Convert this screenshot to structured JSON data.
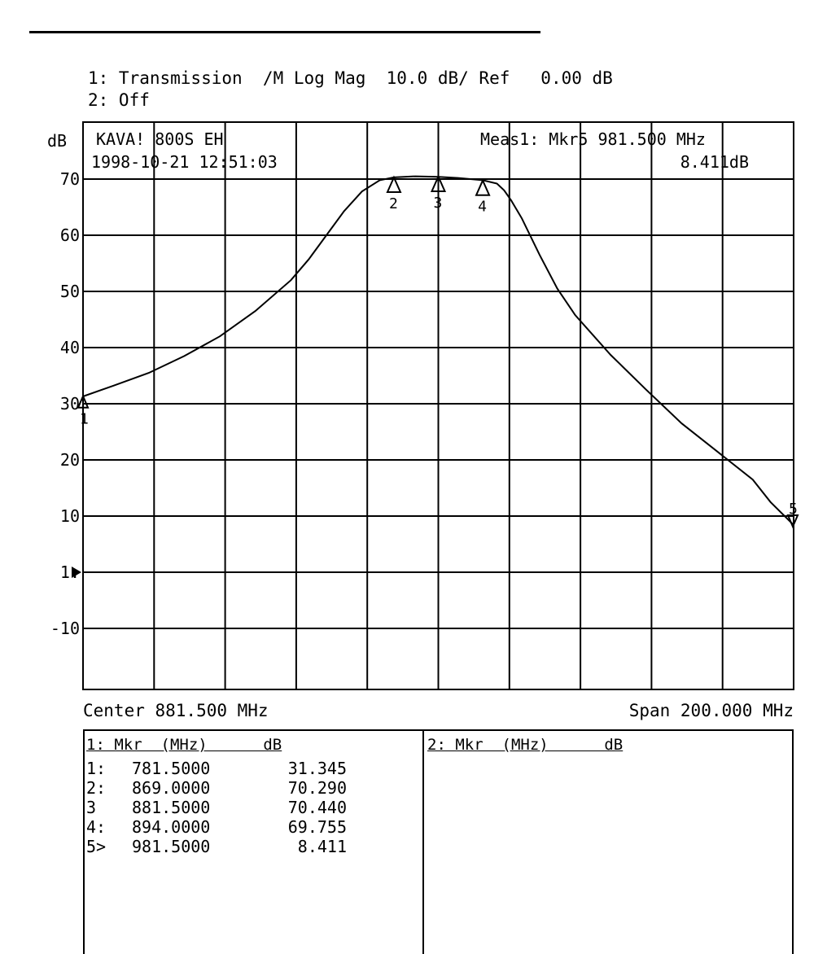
{
  "header": {
    "trace1": "1: Transmission  /M Log Mag  10.0 dB/ Ref   0.00 dB",
    "trace2": "2: Off"
  },
  "chart_data": {
    "type": "line",
    "title": "",
    "xlabel": "",
    "ylabel": "dB",
    "xlim": [
      781.5,
      981.5
    ],
    "ylim": [
      -20,
      70
    ],
    "grid": true,
    "ytick_labels": [
      "70",
      "60",
      "50",
      "40",
      "30",
      "20",
      "10",
      "1:",
      "-10"
    ],
    "info_left": [
      "KAVA! 800S EH",
      "1998-10-21  12:51:03"
    ],
    "info_right": [
      "Meas1: Mkr5  981.500 MHz",
      "8.411dB"
    ],
    "center_label": "Center 881.500 MHz",
    "span_label": "Span 200.000 MHz",
    "series": [
      {
        "x": [
          781.5,
          790,
          800,
          810,
          820,
          830,
          840,
          845,
          850,
          855,
          860,
          865,
          869,
          875,
          881.5,
          887,
          894,
          898,
          900,
          902,
          905,
          910,
          915,
          920,
          930,
          940,
          950,
          960,
          970,
          975,
          981.5
        ],
        "y": [
          31.3,
          33.2,
          35.5,
          38.5,
          42,
          46.5,
          52,
          55.7,
          60,
          64.3,
          67.8,
          69.8,
          70.3,
          70.5,
          70.4,
          70.2,
          69.8,
          69.2,
          68,
          66.2,
          63,
          56.5,
          50.5,
          45.8,
          38.7,
          32.5,
          26.5,
          21.5,
          16.5,
          12.5,
          8.4
        ]
      }
    ],
    "markers": [
      {
        "label": "1",
        "x": 781.5,
        "y": 31.345
      },
      {
        "label": "2",
        "x": 869.0,
        "y": 70.29
      },
      {
        "label": "3",
        "x": 881.5,
        "y": 70.44
      },
      {
        "label": "4",
        "x": 894.0,
        "y": 69.755
      },
      {
        "label": "5",
        "x": 981.5,
        "y": 8.411
      }
    ],
    "ref_marker_label": "1:"
  },
  "marker_table": {
    "left_header": "1: Mkr  (MHz)      dB",
    "right_header": "2: Mkr  (MHz)      dB",
    "rows": [
      {
        "idx": "1:",
        "freq": "781.5000",
        "db": "31.345"
      },
      {
        "idx": "2:",
        "freq": "869.0000",
        "db": "70.290"
      },
      {
        "idx": "3",
        "freq": "881.5000",
        "db": "70.440"
      },
      {
        "idx": "4:",
        "freq": "894.0000",
        "db": "69.755"
      },
      {
        "idx": "5>",
        "freq": "981.5000",
        "db": "8.411"
      }
    ]
  }
}
